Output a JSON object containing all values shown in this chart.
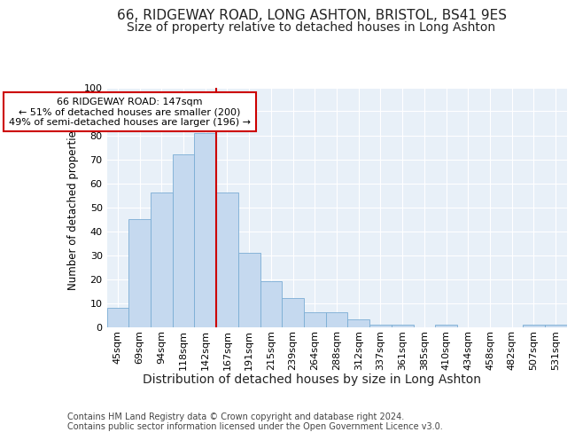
{
  "title1": "66, RIDGEWAY ROAD, LONG ASHTON, BRISTOL, BS41 9ES",
  "title2": "Size of property relative to detached houses in Long Ashton",
  "xlabel": "Distribution of detached houses by size in Long Ashton",
  "ylabel": "Number of detached properties",
  "categories": [
    "45sqm",
    "69sqm",
    "94sqm",
    "118sqm",
    "142sqm",
    "167sqm",
    "191sqm",
    "215sqm",
    "239sqm",
    "264sqm",
    "288sqm",
    "312sqm",
    "337sqm",
    "361sqm",
    "385sqm",
    "410sqm",
    "434sqm",
    "458sqm",
    "482sqm",
    "507sqm",
    "531sqm"
  ],
  "values": [
    8,
    45,
    56,
    72,
    81,
    56,
    31,
    19,
    12,
    6,
    6,
    3,
    1,
    1,
    0,
    1,
    0,
    0,
    0,
    1,
    1
  ],
  "bar_color": "#c5d9ef",
  "bar_edge_color": "#7aadd4",
  "bar_width": 1.0,
  "vline_x": 4.5,
  "vline_color": "#cc0000",
  "annotation_text": "66 RIDGEWAY ROAD: 147sqm\n← 51% of detached houses are smaller (200)\n49% of semi-detached houses are larger (196) →",
  "ylim": [
    0,
    100
  ],
  "yticks": [
    0,
    10,
    20,
    30,
    40,
    50,
    60,
    70,
    80,
    90,
    100
  ],
  "bg_color": "#ffffff",
  "plot_bg_color": "#e8f0f8",
  "grid_color": "#ffffff",
  "footer1": "Contains HM Land Registry data © Crown copyright and database right 2024.",
  "footer2": "Contains public sector information licensed under the Open Government Licence v3.0.",
  "title1_fontsize": 11,
  "title2_fontsize": 10,
  "xlabel_fontsize": 10,
  "ylabel_fontsize": 8.5,
  "tick_fontsize": 8,
  "footer_fontsize": 7,
  "annot_fontsize": 8,
  "annot_box_color": "#ffffff",
  "annot_edge_color": "#cc0000"
}
